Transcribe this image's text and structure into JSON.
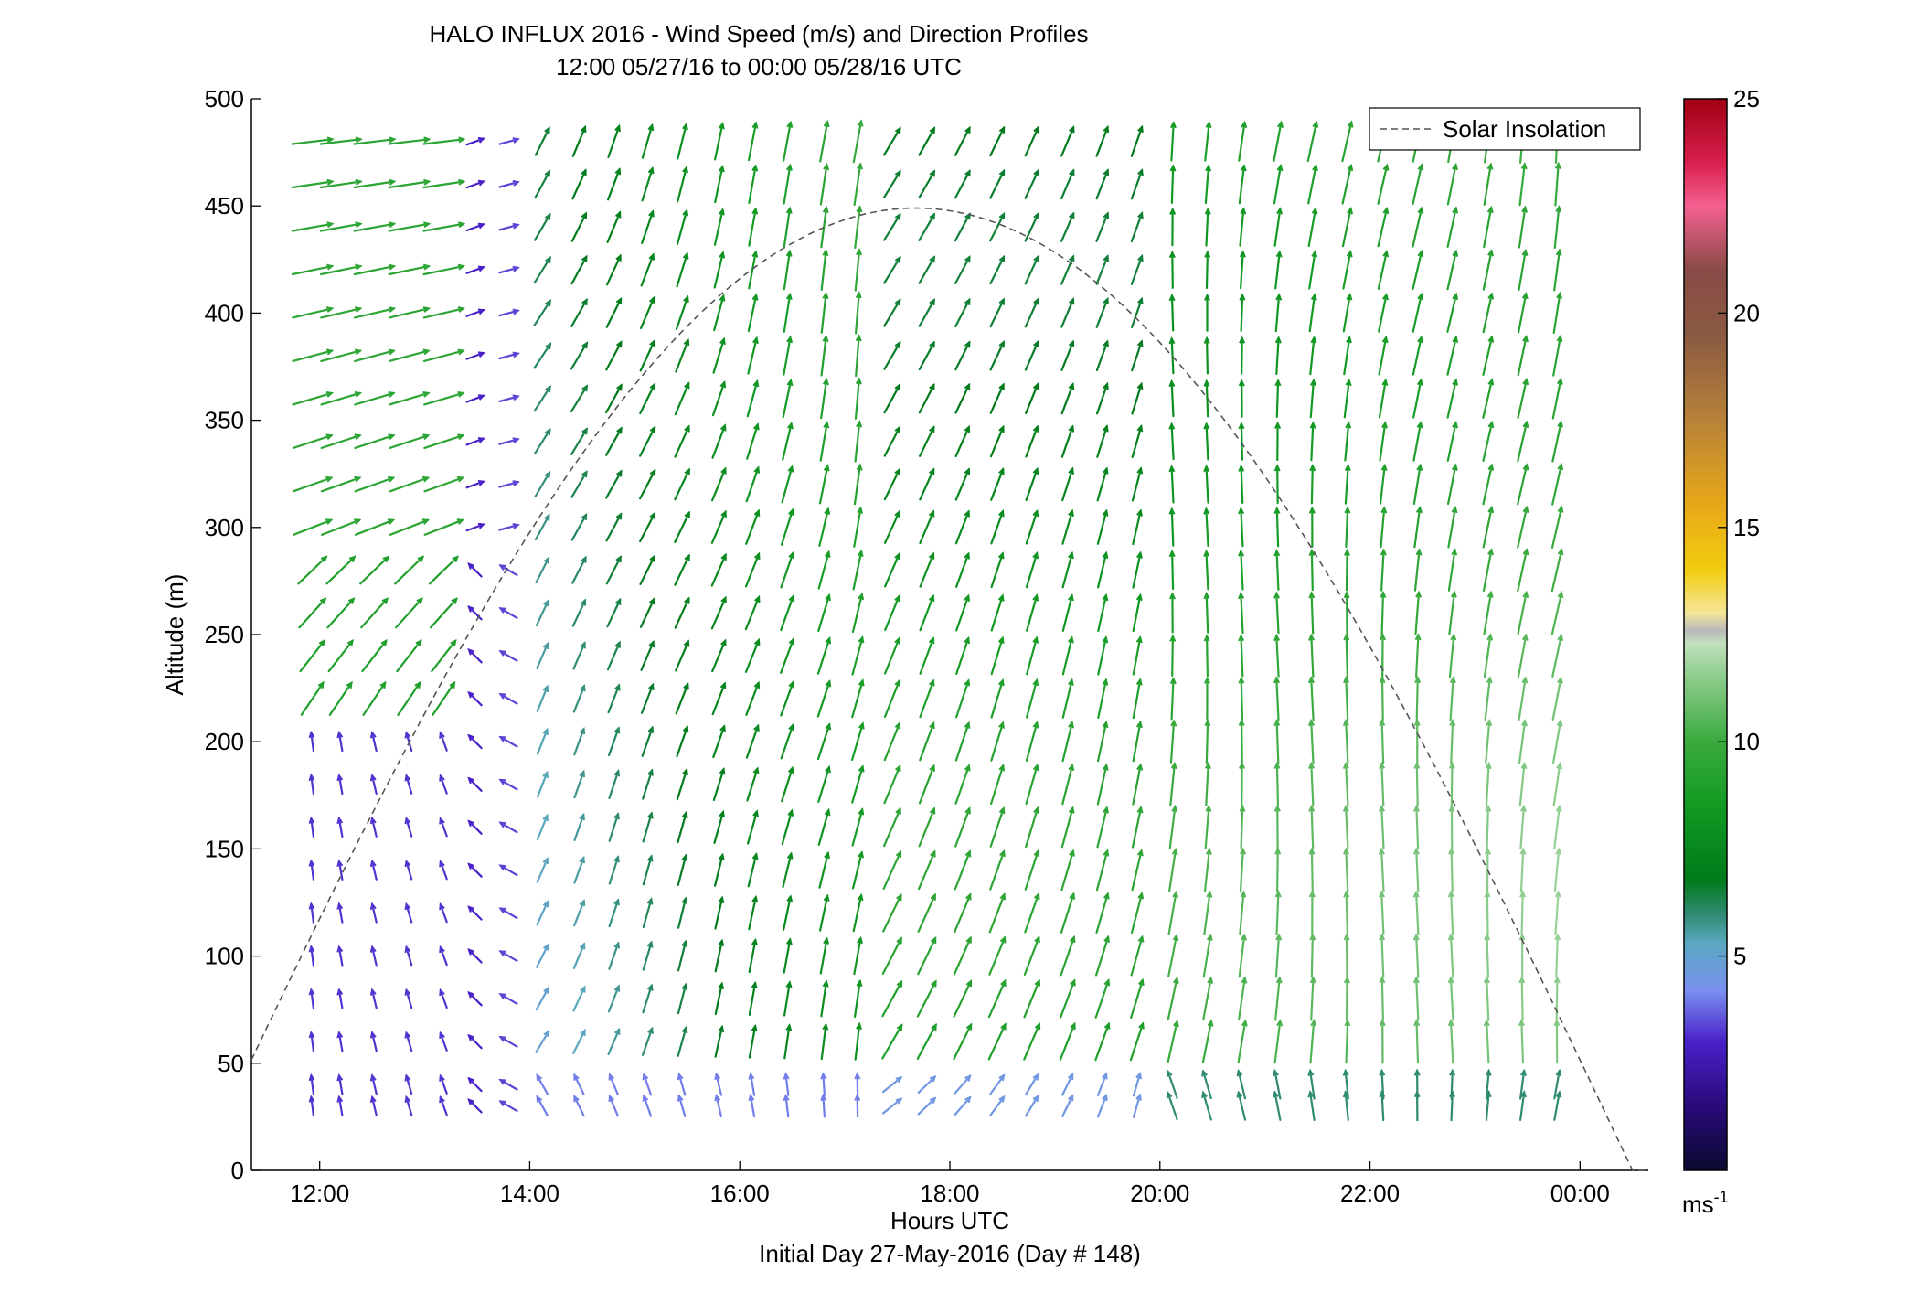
{
  "chart_data": {
    "type": "quiver",
    "title": "HALO INFLUX 2016 - Wind Speed (m/s) and Direction Profiles",
    "subtitle": "12:00 05/27/16 to 00:00 05/28/16  UTC",
    "xlabel": "Hours UTC",
    "xlabel2": "Initial Day 27-May-2016 (Day # 148)",
    "ylabel": "Altitude (m)",
    "x_ticks": [
      {
        "value": 12,
        "label": "12:00"
      },
      {
        "value": 14,
        "label": "14:00"
      },
      {
        "value": 16,
        "label": "16:00"
      },
      {
        "value": 18,
        "label": "18:00"
      },
      {
        "value": 20,
        "label": "20:00"
      },
      {
        "value": 22,
        "label": "22:00"
      },
      {
        "value": 24,
        "label": "00:00"
      }
    ],
    "y_ticks": [
      {
        "value": 0,
        "label": "0"
      },
      {
        "value": 50,
        "label": "50"
      },
      {
        "value": 100,
        "label": "100"
      },
      {
        "value": 150,
        "label": "150"
      },
      {
        "value": 200,
        "label": "200"
      },
      {
        "value": 250,
        "label": "250"
      },
      {
        "value": 300,
        "label": "300"
      },
      {
        "value": 350,
        "label": "350"
      },
      {
        "value": 400,
        "label": "400"
      },
      {
        "value": 450,
        "label": "450"
      },
      {
        "value": 500,
        "label": "500"
      }
    ],
    "xlim": [
      11.35,
      24.65
    ],
    "ylim": [
      0,
      500
    ],
    "legend": {
      "label": "Solar Insolation",
      "position": "top-right",
      "style": "dashed"
    },
    "colorbar": {
      "range": [
        0,
        25
      ],
      "ticks": [
        {
          "value": 5,
          "label": "5"
        },
        {
          "value": 10,
          "label": "10"
        },
        {
          "value": 15,
          "label": "15"
        },
        {
          "value": 20,
          "label": "20"
        },
        {
          "value": 25,
          "label": "25"
        }
      ],
      "unit": "ms",
      "unit_exponent": "-1",
      "stops": [
        [
          0,
          "#0a0a30"
        ],
        [
          1.5,
          "#2a0a7a"
        ],
        [
          3,
          "#4a20c8"
        ],
        [
          4.2,
          "#7a90f0"
        ],
        [
          5.3,
          "#5aa8c0"
        ],
        [
          6,
          "#2e8a70"
        ],
        [
          6.8,
          "#007a1a"
        ],
        [
          8.5,
          "#129a22"
        ],
        [
          10,
          "#3aaa3e"
        ],
        [
          11.5,
          "#8ccc8c"
        ],
        [
          12.3,
          "#c2e0bc"
        ],
        [
          12.6,
          "#b8b8b8"
        ],
        [
          13,
          "#f4e69a"
        ],
        [
          14,
          "#f2cc10"
        ],
        [
          15.5,
          "#e8a818"
        ],
        [
          17.5,
          "#b88238"
        ],
        [
          19.5,
          "#8a5a42"
        ],
        [
          21,
          "#8a4a46"
        ],
        [
          22.5,
          "#f46090"
        ],
        [
          23.5,
          "#d8204e"
        ],
        [
          25,
          "#a00014"
        ]
      ]
    },
    "wind_field": {
      "times": [
        11.93,
        12.2,
        12.52,
        12.85,
        13.18,
        13.48,
        13.8,
        14.12,
        14.47,
        14.8,
        15.12,
        15.45,
        15.8,
        16.12,
        16.45,
        16.8,
        17.12,
        17.45,
        17.78,
        18.12,
        18.45,
        18.78,
        19.12,
        19.45,
        19.78,
        20.12,
        20.45,
        20.78,
        21.12,
        21.45,
        21.78,
        22.12,
        22.45,
        22.78,
        23.12,
        23.45,
        23.78
      ],
      "altitudes": [
        30,
        40,
        60,
        80,
        100,
        120,
        140,
        160,
        180,
        200,
        220,
        240,
        260,
        280,
        300,
        320,
        340,
        360,
        380,
        400,
        420,
        440,
        460,
        480
      ]
    },
    "solar_insolation": {
      "peak_time": 17.65,
      "peak_value": 449,
      "sunrise": 10.85,
      "sunset": 24.5,
      "x": [
        11.35,
        12,
        13,
        14,
        15,
        16,
        17,
        17.65,
        18,
        19,
        20,
        21,
        22,
        23,
        24,
        24.65
      ]
    }
  }
}
